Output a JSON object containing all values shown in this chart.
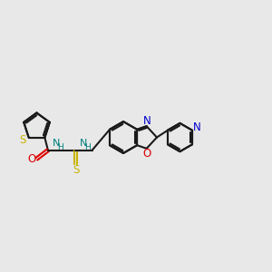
{
  "bg_color": "#e8e8e8",
  "bond_color": "#1a1a1a",
  "S_color": "#c8b400",
  "O_color": "#dd0000",
  "N_color": "#0000cc",
  "NH_color": "#008080",
  "lw": 1.5,
  "fs": 8.5,
  "figsize": [
    3.0,
    3.0
  ],
  "dpi": 100,
  "xlim": [
    0,
    10
  ],
  "ylim": [
    2.5,
    7.5
  ]
}
